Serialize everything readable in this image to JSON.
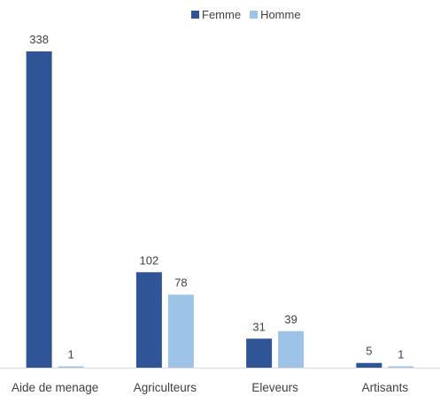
{
  "chart_data": {
    "type": "bar",
    "categories": [
      "Aide de menage",
      "Agriculteurs",
      "Eleveurs",
      "Artisants"
    ],
    "series": [
      {
        "name": "Femme",
        "values": [
          338,
          102,
          31,
          5
        ],
        "color": "#2F5597"
      },
      {
        "name": "Homme",
        "values": [
          1,
          78,
          39,
          1
        ],
        "color": "#9DC3E6"
      }
    ],
    "title": "",
    "xlabel": "",
    "ylabel": "",
    "ylim": [
      0,
      338
    ],
    "grid": false,
    "legend_position": "top-right",
    "data_labels": true
  }
}
